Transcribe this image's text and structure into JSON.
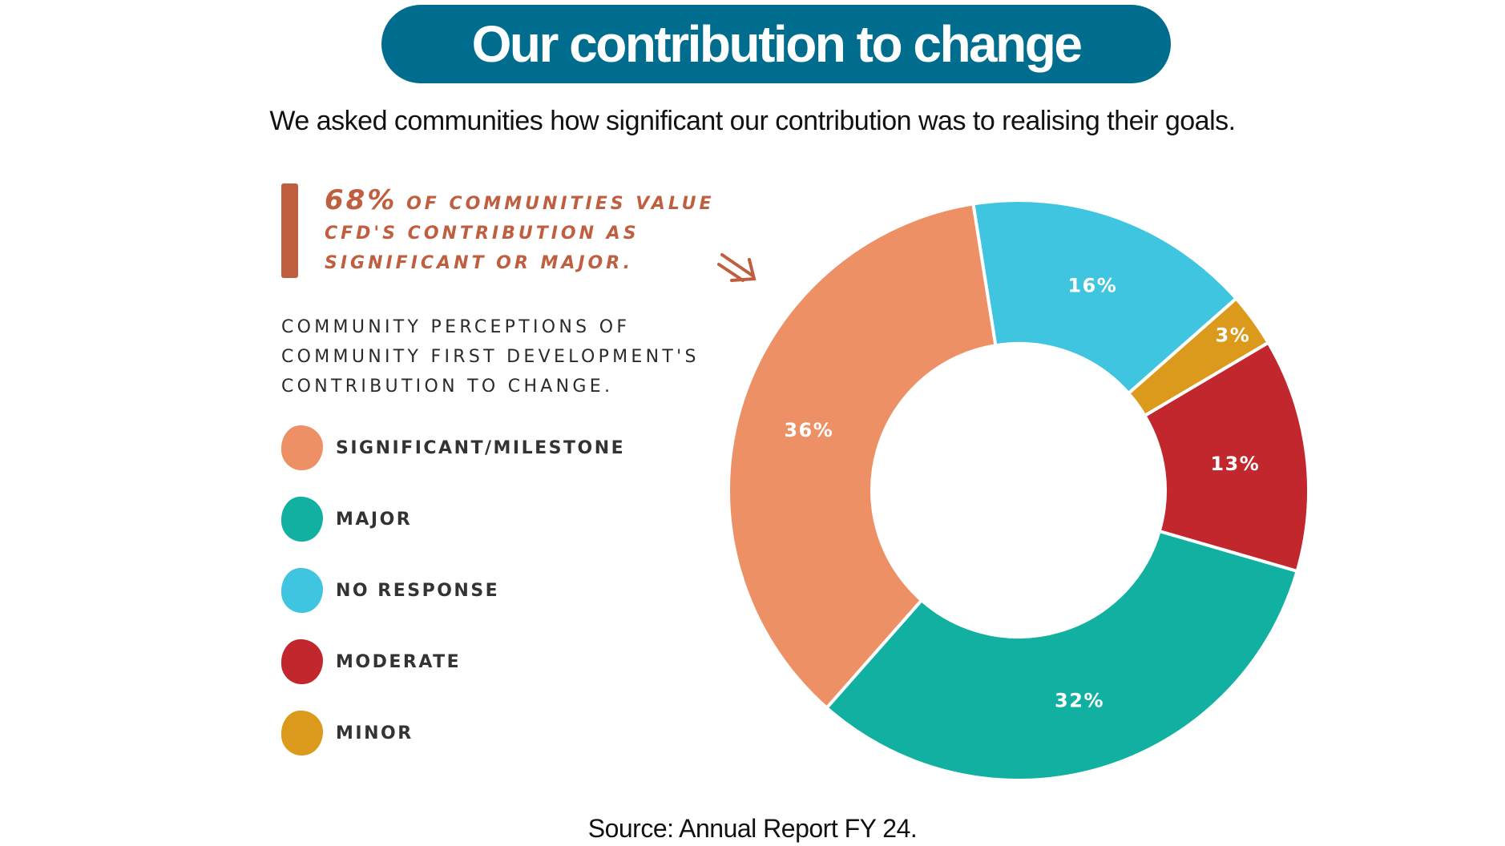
{
  "header": {
    "title": "Our contribution to change",
    "subtitle": "We asked communities how significant our contribution was to realising their goals."
  },
  "callout": {
    "percent": "68%",
    "text_line1": "of communities value",
    "text_line2": "CFD's contribution as",
    "text_line3": "significant or major."
  },
  "legend": {
    "title_line1": "Community perceptions of",
    "title_line2": "Community First Development's",
    "title_line3": "contribution to change."
  },
  "footer": {
    "source": "Source: Annual Report FY 24."
  },
  "colors": {
    "title_bg": "#006d8f",
    "callout": "#c05f40"
  },
  "chart_data": {
    "type": "pie",
    "donut": true,
    "categories": [
      "Significant/Milestone",
      "Major",
      "No response",
      "Moderate",
      "Minor"
    ],
    "values": [
      36,
      32,
      16,
      13,
      3
    ],
    "labels": [
      "36%",
      "32%",
      "16%",
      "13%",
      "3%"
    ],
    "colors": [
      "#ee9066",
      "#11b0a1",
      "#40c5e1",
      "#c1272d",
      "#db9a1b"
    ],
    "legend_labels": [
      "SIGNIFICANT/MILESTONE",
      "MAJOR",
      "NO RESPONSE",
      "MODERATE",
      "MINOR"
    ],
    "clockwise_from_top_order": [
      "No response",
      "Minor",
      "Moderate",
      "Major",
      "Significant/Milestone"
    ],
    "legend_position": "left"
  }
}
